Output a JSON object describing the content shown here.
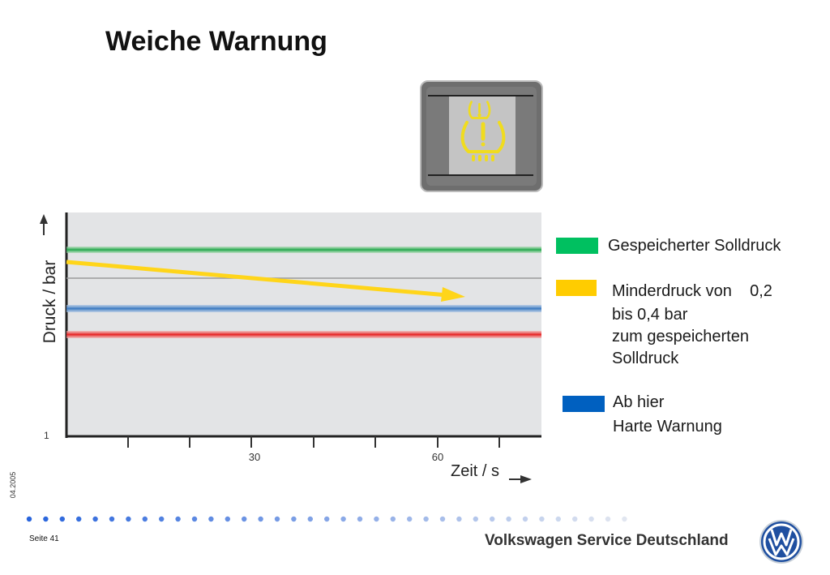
{
  "slide": {
    "title": "Weiche Warnung",
    "date": "04.2005",
    "page_label": "Seite 41",
    "brand": "Volkswagen Service Deutschland"
  },
  "warning_lamp": {
    "icon": "tire-pressure-warning-icon",
    "symbol": "!"
  },
  "chart": {
    "ylabel": "Druck / bar",
    "xlabel": "Zeit / s",
    "ytick": "1",
    "xticks": [
      "30",
      "60"
    ]
  },
  "legend": [
    {
      "color": "#00c060",
      "text": "Gespeicherter Solldruck",
      "lines": [
        "Gespeicherter Solldruck"
      ]
    },
    {
      "color": "#ffcc00",
      "text": "Minderdruck von    0,2 bis 0,4 bar zum gespeicherten Solldruck",
      "lines": [
        "Minderdruck von    0,2",
        "bis 0,4 bar",
        "zum gespeicherten",
        "Solldruck"
      ]
    },
    {
      "color": "#0060c0",
      "text": "Ab hier Harte Warnung",
      "lines": [
        "Ab hier",
        "Harte Warnung"
      ]
    }
  ],
  "colors": {
    "chart_bg": "#e3e4e6",
    "stored_pressure_line": "#1fa64a",
    "blue_line": "#3a78c0",
    "red_line": "#e62020",
    "arrow": "#ffd51a"
  },
  "chart_data": {
    "type": "line",
    "title": "",
    "xlabel": "Zeit / s",
    "ylabel": "Druck / bar",
    "xticks": [
      30,
      60
    ],
    "yticks": [
      1
    ],
    "series": [
      {
        "name": "Gespeicherter Solldruck",
        "kind": "horizontal",
        "color": "#1fa64a"
      },
      {
        "name": "Ab hier Harte Warnung",
        "kind": "horizontal",
        "color": "#3a78c0"
      },
      {
        "kind": "horizontal",
        "color": "#e62020"
      },
      {
        "name": "Minderdruck von 0,2 bis 0,4 bar zum gespeicherten Solldruck",
        "kind": "arrow",
        "color": "#ffd51a"
      }
    ]
  }
}
